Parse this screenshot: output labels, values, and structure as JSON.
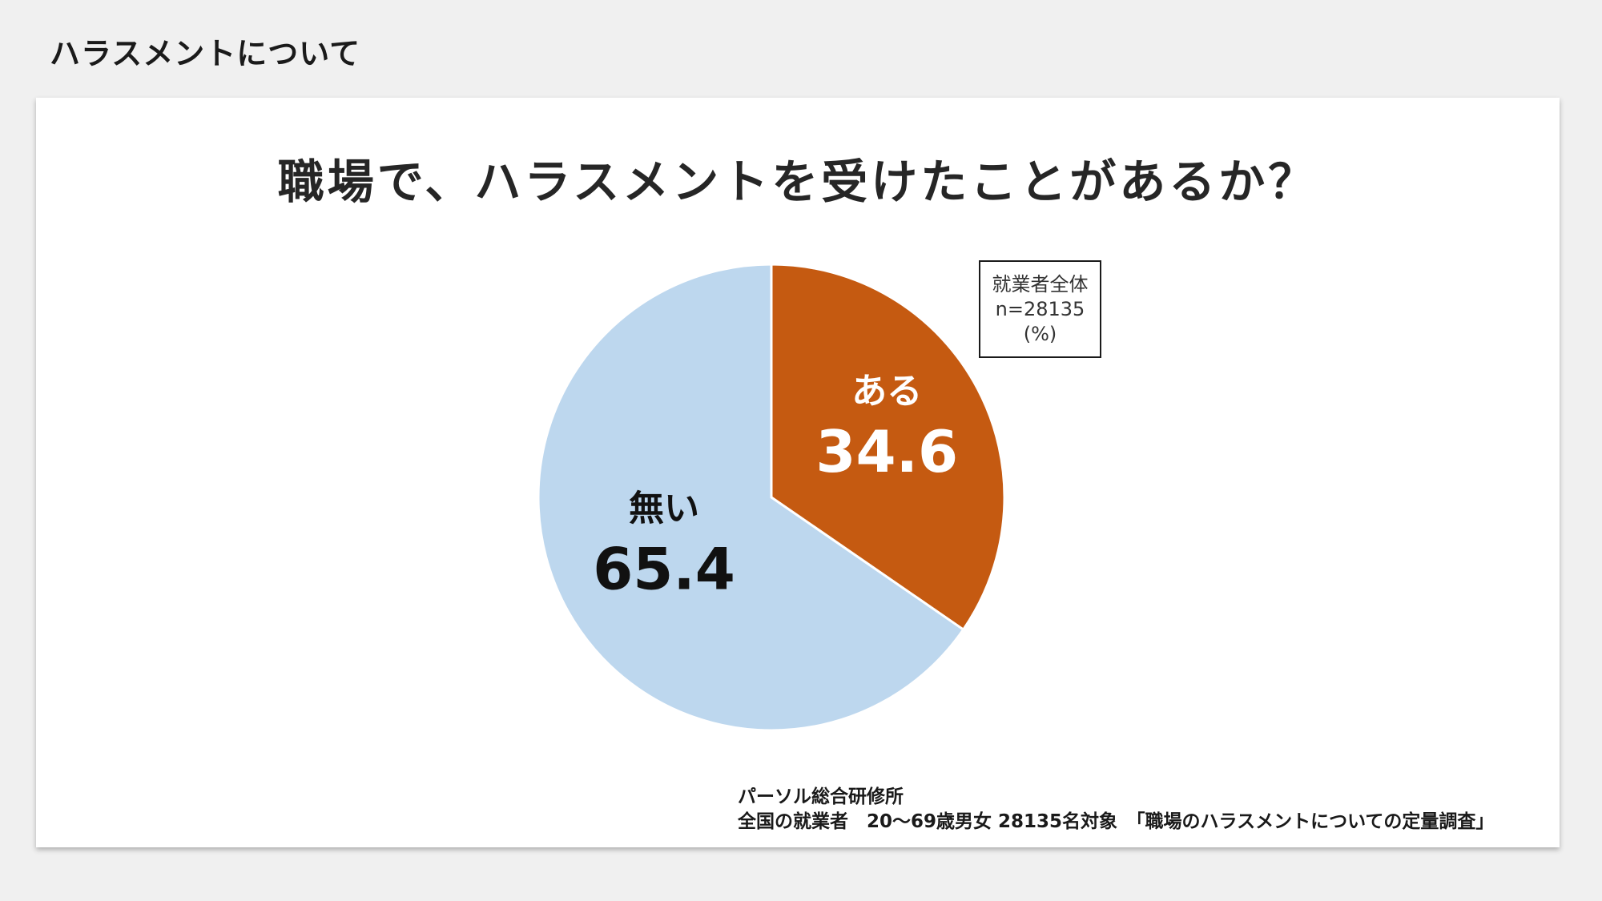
{
  "page": {
    "heading": "ハラスメントについて"
  },
  "chart_data": {
    "type": "pie",
    "title": "職場で、ハラスメントを受けたことがあるか？",
    "slices": [
      {
        "label": "ある",
        "value": 34.6,
        "value_label": "34.6",
        "color": "#c55a11",
        "label_color": "#ffffff"
      },
      {
        "label": "無い",
        "value": 65.4,
        "value_label": "65.4",
        "color": "#bdd7ee",
        "label_color": "#111111"
      }
    ],
    "legend": {
      "line1": "就業者全体",
      "line2": "n=28135",
      "line3": "(%)"
    }
  },
  "source": {
    "line1": "パーソル総合研修所",
    "line2": "全国の就業者　20～69歳男女 28135名対象　「職場のハラスメントについての定量調査」"
  }
}
